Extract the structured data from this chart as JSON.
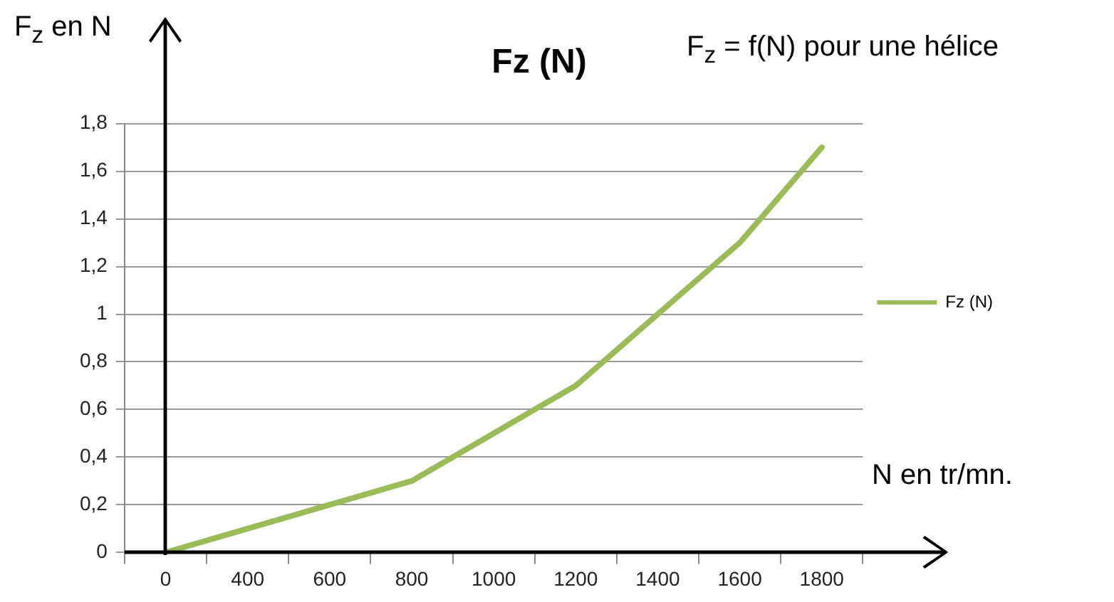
{
  "chart_data": {
    "type": "line",
    "title": "Fz (N)",
    "categories": [
      "0",
      "400",
      "600",
      "800",
      "1000",
      "1200",
      "1400",
      "1600",
      "1800"
    ],
    "series": [
      {
        "name": "Fz (N)",
        "color": "#9bbb59",
        "values": [
          0,
          0.1,
          0.2,
          0.3,
          0.5,
          0.7,
          1.0,
          1.3,
          1.7
        ]
      }
    ],
    "ylim": [
      0,
      1.8
    ],
    "yticks": [
      0,
      {
        "value": 0.2,
        "label": "0,2"
      },
      {
        "value": 0.4,
        "label": "0,4"
      },
      {
        "value": 0.6,
        "label": "0,6"
      },
      {
        "value": 0.8,
        "label": "0,8"
      },
      1,
      {
        "value": 1.2,
        "label": "1,2"
      },
      {
        "value": 1.4,
        "label": "1,4"
      },
      {
        "value": 1.6,
        "label": "1,6"
      },
      {
        "value": 1.8,
        "label": "1,8"
      }
    ],
    "grid": "y",
    "legend": "right",
    "marker": "none",
    "line_style": "solid",
    "annotations": [
      "F$_{z}$ en N",
      "F$_{z}$ = f(N) pour une hélice",
      "N en tr/mn."
    ]
  }
}
